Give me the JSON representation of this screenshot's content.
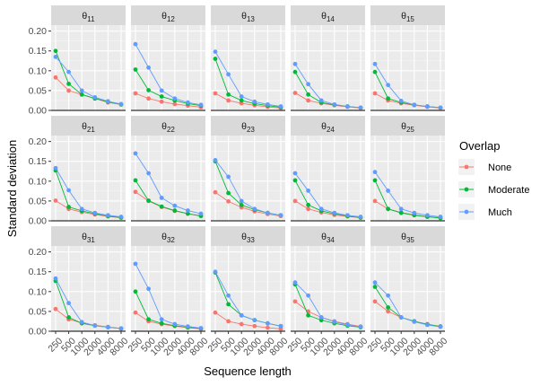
{
  "chart_data": {
    "type": "line",
    "facets": [
      "θ11",
      "θ12",
      "θ13",
      "θ14",
      "θ15",
      "θ21",
      "θ22",
      "θ23",
      "θ24",
      "θ25",
      "θ31",
      "θ32",
      "θ33",
      "θ34",
      "θ35"
    ],
    "facet_labels": [
      {
        "base": "θ",
        "sub": "11"
      },
      {
        "base": "θ",
        "sub": "12"
      },
      {
        "base": "θ",
        "sub": "13"
      },
      {
        "base": "θ",
        "sub": "14"
      },
      {
        "base": "θ",
        "sub": "15"
      },
      {
        "base": "θ",
        "sub": "21"
      },
      {
        "base": "θ",
        "sub": "22"
      },
      {
        "base": "θ",
        "sub": "23"
      },
      {
        "base": "θ",
        "sub": "24"
      },
      {
        "base": "θ",
        "sub": "25"
      },
      {
        "base": "θ",
        "sub": "31"
      },
      {
        "base": "θ",
        "sub": "32"
      },
      {
        "base": "θ",
        "sub": "33"
      },
      {
        "base": "θ",
        "sub": "34"
      },
      {
        "base": "θ",
        "sub": "35"
      }
    ],
    "x": [
      250,
      500,
      1000,
      2000,
      4000,
      8000
    ],
    "x_tick_labels": [
      "250",
      "500",
      "1000",
      "2000",
      "4000",
      "8000"
    ],
    "y_ticks": [
      0.0,
      0.05,
      0.1,
      0.15,
      0.2
    ],
    "y_tick_labels": [
      "0.00",
      "0.05",
      "0.10",
      "0.15",
      "0.20"
    ],
    "ylim": [
      0,
      0.215
    ],
    "xlabel": "Sequence length",
    "ylabel": "Standard deviation",
    "grid": true,
    "legend": {
      "title": "Overlap",
      "placement": "right"
    },
    "series": [
      {
        "name": "None",
        "color": "#F8766D",
        "facet_values": [
          [
            0.083,
            0.05,
            0.04,
            0.03,
            0.02,
            0.015
          ],
          [
            0.043,
            0.03,
            0.022,
            0.016,
            0.012,
            0.008
          ],
          [
            0.043,
            0.025,
            0.018,
            0.013,
            0.009,
            0.006
          ],
          [
            0.044,
            0.025,
            0.018,
            0.013,
            0.009,
            0.006
          ],
          [
            0.043,
            0.025,
            0.018,
            0.013,
            0.009,
            0.006
          ],
          [
            0.051,
            0.03,
            0.022,
            0.016,
            0.011,
            0.008
          ],
          [
            0.073,
            0.05,
            0.035,
            0.025,
            0.018,
            0.013
          ],
          [
            0.072,
            0.049,
            0.034,
            0.024,
            0.017,
            0.012
          ],
          [
            0.05,
            0.03,
            0.021,
            0.015,
            0.011,
            0.008
          ],
          [
            0.05,
            0.03,
            0.021,
            0.015,
            0.011,
            0.008
          ],
          [
            0.056,
            0.03,
            0.021,
            0.015,
            0.011,
            0.007
          ],
          [
            0.047,
            0.025,
            0.018,
            0.013,
            0.009,
            0.006
          ],
          [
            0.047,
            0.025,
            0.018,
            0.013,
            0.009,
            0.006
          ],
          [
            0.075,
            0.05,
            0.035,
            0.025,
            0.018,
            0.012
          ],
          [
            0.075,
            0.05,
            0.035,
            0.025,
            0.018,
            0.012
          ]
        ]
      },
      {
        "name": "Moderate",
        "color": "#00BA38",
        "facet_values": [
          [
            0.15,
            0.067,
            0.04,
            0.03,
            0.022,
            0.015
          ],
          [
            0.103,
            0.051,
            0.035,
            0.025,
            0.017,
            0.012
          ],
          [
            0.13,
            0.04,
            0.025,
            0.017,
            0.012,
            0.008
          ],
          [
            0.097,
            0.04,
            0.02,
            0.014,
            0.01,
            0.007
          ],
          [
            0.097,
            0.03,
            0.02,
            0.014,
            0.01,
            0.007
          ],
          [
            0.127,
            0.035,
            0.025,
            0.018,
            0.012,
            0.008
          ],
          [
            0.102,
            0.051,
            0.036,
            0.026,
            0.018,
            0.012
          ],
          [
            0.15,
            0.07,
            0.04,
            0.028,
            0.02,
            0.014
          ],
          [
            0.102,
            0.04,
            0.025,
            0.018,
            0.012,
            0.008
          ],
          [
            0.102,
            0.03,
            0.02,
            0.014,
            0.01,
            0.007
          ],
          [
            0.127,
            0.035,
            0.02,
            0.014,
            0.01,
            0.007
          ],
          [
            0.1,
            0.03,
            0.02,
            0.014,
            0.01,
            0.007
          ],
          [
            0.148,
            0.068,
            0.04,
            0.028,
            0.02,
            0.013
          ],
          [
            0.118,
            0.04,
            0.028,
            0.02,
            0.014,
            0.01
          ],
          [
            0.112,
            0.06,
            0.035,
            0.025,
            0.017,
            0.012
          ]
        ]
      },
      {
        "name": "Much",
        "color": "#619CFF",
        "facet_values": [
          [
            0.135,
            0.097,
            0.05,
            0.033,
            0.023,
            0.016
          ],
          [
            0.167,
            0.108,
            0.05,
            0.03,
            0.02,
            0.014
          ],
          [
            0.148,
            0.091,
            0.035,
            0.022,
            0.015,
            0.01
          ],
          [
            0.117,
            0.066,
            0.025,
            0.015,
            0.01,
            0.007
          ],
          [
            0.117,
            0.064,
            0.024,
            0.014,
            0.01,
            0.007
          ],
          [
            0.133,
            0.077,
            0.03,
            0.02,
            0.014,
            0.01
          ],
          [
            0.17,
            0.12,
            0.058,
            0.038,
            0.026,
            0.018
          ],
          [
            0.153,
            0.111,
            0.05,
            0.03,
            0.02,
            0.014
          ],
          [
            0.12,
            0.076,
            0.03,
            0.02,
            0.014,
            0.01
          ],
          [
            0.123,
            0.076,
            0.03,
            0.02,
            0.014,
            0.01
          ],
          [
            0.133,
            0.071,
            0.023,
            0.014,
            0.01,
            0.007
          ],
          [
            0.17,
            0.107,
            0.03,
            0.018,
            0.012,
            0.008
          ],
          [
            0.15,
            0.09,
            0.04,
            0.028,
            0.02,
            0.013
          ],
          [
            0.123,
            0.09,
            0.035,
            0.024,
            0.016,
            0.011
          ],
          [
            0.123,
            0.09,
            0.035,
            0.024,
            0.016,
            0.011
          ]
        ]
      }
    ]
  }
}
